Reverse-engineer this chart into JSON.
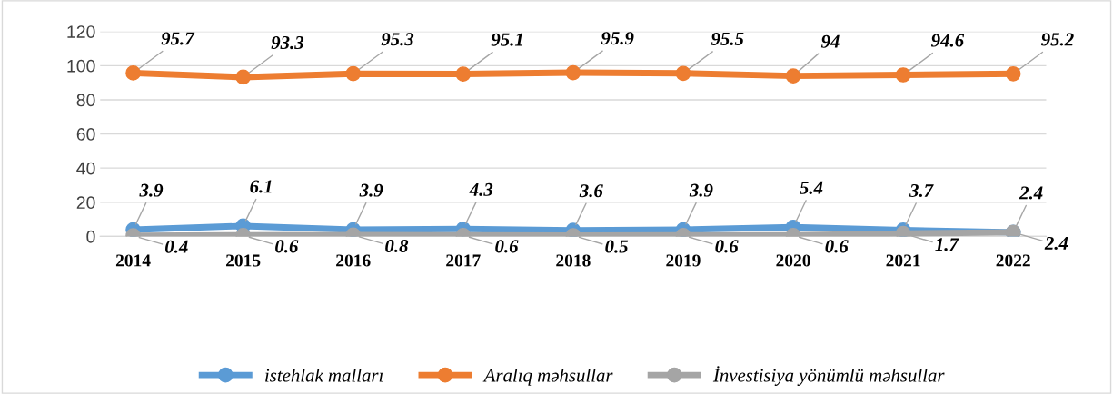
{
  "chart_data": {
    "type": "line",
    "categories": [
      "2014",
      "2015",
      "2016",
      "2017",
      "2018",
      "2019",
      "2020",
      "2021",
      "2022"
    ],
    "series": [
      {
        "name": "istehlak malları",
        "color": "#5b9bd5",
        "values": [
          3.9,
          6.1,
          3.9,
          4.3,
          3.6,
          3.9,
          5.4,
          3.7,
          2.4
        ]
      },
      {
        "name": "Aralıq məhsullar",
        "color": "#ed7d31",
        "values": [
          95.7,
          93.3,
          95.3,
          95.1,
          95.9,
          95.5,
          94,
          94.6,
          95.2
        ]
      },
      {
        "name": "İnvestisiya yönümlü məhsullar",
        "color": "#a5a5a5",
        "values": [
          0.4,
          0.6,
          0.8,
          0.6,
          0.5,
          0.6,
          0.6,
          1.7,
          2.4
        ]
      }
    ],
    "ylim": [
      0,
      120
    ],
    "yticks": [
      0,
      20,
      40,
      60,
      80,
      100,
      120
    ],
    "grid": "y",
    "legend": "bottom",
    "marker": "circle",
    "line_style": "solid",
    "data_labels": true
  }
}
